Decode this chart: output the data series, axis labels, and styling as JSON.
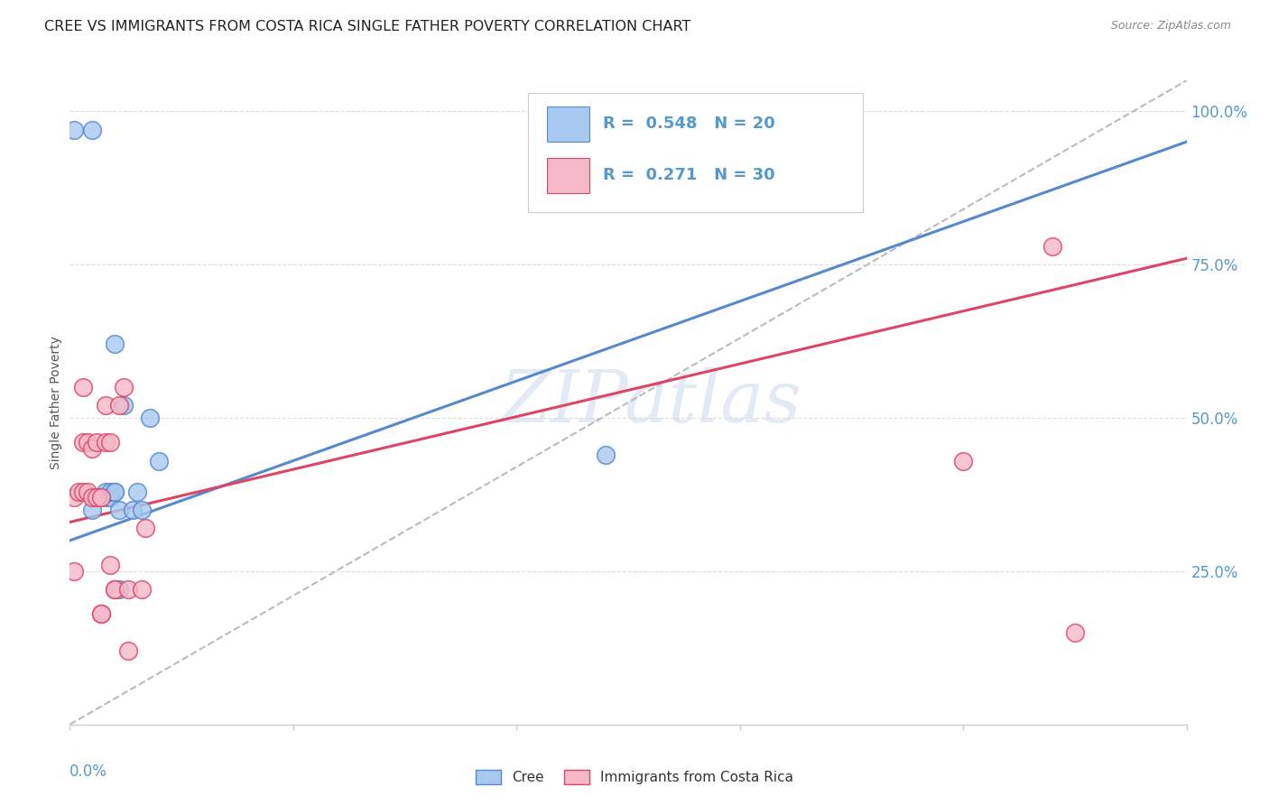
{
  "title": "CREE VS IMMIGRANTS FROM COSTA RICA SINGLE FATHER POVERTY CORRELATION CHART",
  "source": "Source: ZipAtlas.com",
  "ylabel": "Single Father Poverty",
  "R_cree": 0.548,
  "N_cree": 20,
  "R_cr": 0.271,
  "N_cr": 30,
  "color_cree": "#a8c8f0",
  "color_cr": "#f5b8c8",
  "color_cree_line": "#5588cc",
  "color_cr_line": "#dd4466",
  "color_dashed": "#bbbbbb",
  "background_color": "#ffffff",
  "grid_color": "#dddddd",
  "watermark": "ZIPatlas",
  "xlim": [
    0.0,
    0.25
  ],
  "ylim": [
    0.0,
    1.05
  ],
  "cree_x": [
    0.001,
    0.005,
    0.005,
    0.008,
    0.008,
    0.009,
    0.009,
    0.009,
    0.01,
    0.01,
    0.01,
    0.011,
    0.011,
    0.012,
    0.014,
    0.015,
    0.016,
    0.018,
    0.02,
    0.12
  ],
  "cree_y": [
    0.97,
    0.97,
    0.35,
    0.37,
    0.38,
    0.37,
    0.37,
    0.38,
    0.38,
    0.62,
    0.38,
    0.22,
    0.35,
    0.52,
    0.35,
    0.38,
    0.35,
    0.5,
    0.43,
    0.44
  ],
  "cr_x": [
    0.001,
    0.001,
    0.002,
    0.003,
    0.003,
    0.004,
    0.004,
    0.005,
    0.005,
    0.006,
    0.006,
    0.007,
    0.007,
    0.007,
    0.008,
    0.008,
    0.009,
    0.009,
    0.01,
    0.01,
    0.011,
    0.012,
    0.013,
    0.013,
    0.016,
    0.017,
    0.2,
    0.22,
    0.225,
    0.003
  ],
  "cr_y": [
    0.25,
    0.37,
    0.38,
    0.38,
    0.46,
    0.38,
    0.46,
    0.37,
    0.45,
    0.37,
    0.46,
    0.37,
    0.18,
    0.18,
    0.46,
    0.52,
    0.46,
    0.26,
    0.22,
    0.22,
    0.52,
    0.55,
    0.12,
    0.22,
    0.22,
    0.32,
    0.43,
    0.78,
    0.15,
    0.55
  ],
  "cree_line_x": [
    0.0,
    0.25
  ],
  "cree_line_y": [
    0.3,
    0.95
  ],
  "cr_line_x": [
    0.0,
    0.25
  ],
  "cr_line_y": [
    0.33,
    0.76
  ]
}
